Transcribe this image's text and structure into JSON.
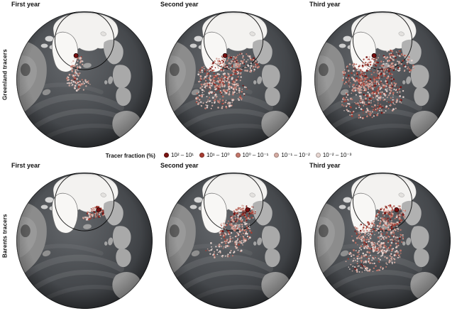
{
  "rows": [
    {
      "label": "Greenland tracers",
      "panels": [
        {
          "title": "First year"
        },
        {
          "title": "Second year"
        },
        {
          "title": "Third year"
        }
      ]
    },
    {
      "label": "Barents tracers",
      "panels": [
        {
          "title": "First year"
        },
        {
          "title": "Second year"
        },
        {
          "title": "Third year"
        }
      ]
    }
  ],
  "legend": {
    "title": "Tracer fraction (%)",
    "entries": [
      {
        "label": "10² – 10¹",
        "color": "#7a1210"
      },
      {
        "label": "10¹ – 10⁰",
        "color": "#a63c31"
      },
      {
        "label": "10⁰ – 10⁻¹",
        "color": "#c2766a"
      },
      {
        "label": "10⁻¹ – 10⁻²",
        "color": "#d6aca3"
      },
      {
        "label": "10⁻² – 10⁻³",
        "color": "#e7d6d1"
      }
    ]
  },
  "colors": {
    "ocean_light": "#64676b",
    "ocean": "#45484c",
    "ocean_dark": "#292b2e",
    "ice": "#f3f2f0",
    "land": "#9a9a9a",
    "arctic_ring": "#000000",
    "source_marker": "#7a0f10"
  }
}
